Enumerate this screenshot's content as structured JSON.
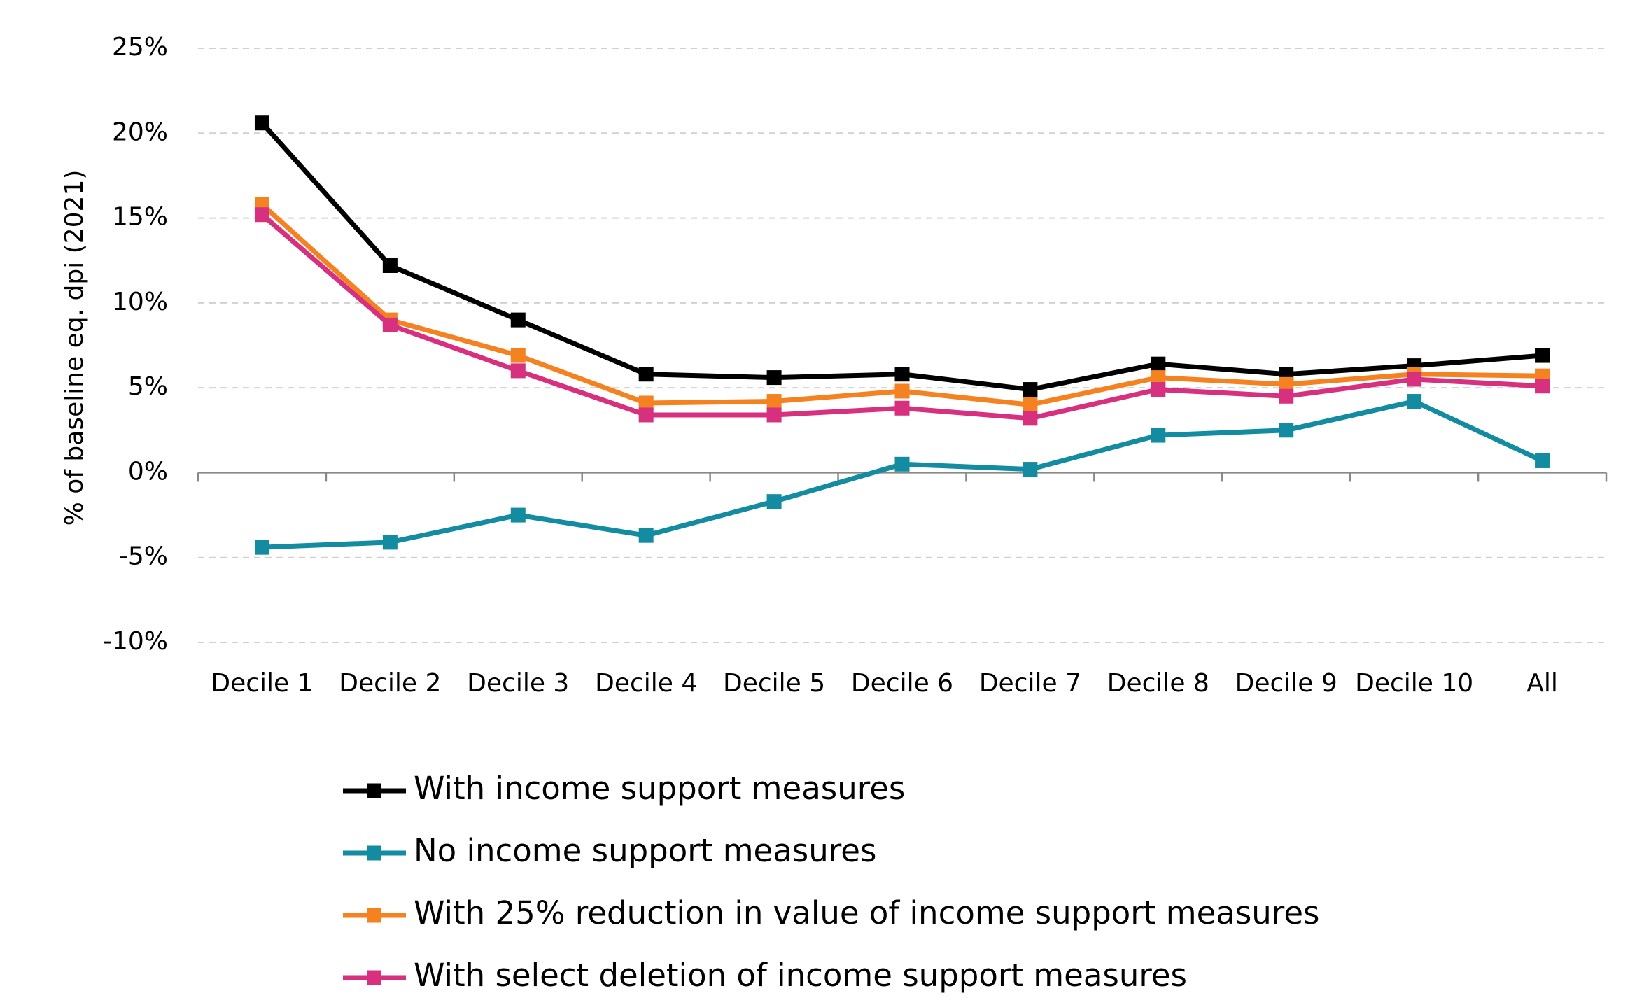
{
  "chart_data": {
    "type": "line",
    "y_axis_label": "% of baseline eq. dpi (2021)",
    "categories": [
      "Decile 1",
      "Decile 2",
      "Decile 3",
      "Decile 4",
      "Decile 5",
      "Decile 6",
      "Decile 7",
      "Decile 8",
      "Decile 9",
      "Decile 10",
      "All"
    ],
    "series": [
      {
        "name": "With income support  measures",
        "color": "#000000",
        "values": [
          20.6,
          12.2,
          9.0,
          5.8,
          5.6,
          5.8,
          4.9,
          6.4,
          5.8,
          6.3,
          6.9
        ]
      },
      {
        "name": "No income support measures",
        "color": "#138ba0",
        "values": [
          -4.4,
          -4.1,
          -2.5,
          -3.7,
          -1.7,
          0.5,
          0.2,
          2.2,
          2.5,
          4.2,
          0.7
        ]
      },
      {
        "name": "With 25% reduction in value of income support measures",
        "color": "#f58220",
        "values": [
          15.8,
          9.0,
          6.9,
          4.1,
          4.2,
          4.8,
          4.0,
          5.6,
          5.2,
          5.8,
          5.7
        ]
      },
      {
        "name": "With select deletion of income support measures",
        "color": "#d6307f",
        "values": [
          15.2,
          8.7,
          6.0,
          3.4,
          3.4,
          3.8,
          3.2,
          4.9,
          4.5,
          5.5,
          5.1
        ]
      }
    ],
    "ylim": [
      -10,
      25
    ],
    "yticks": [
      {
        "value": -10,
        "label": "-10%"
      },
      {
        "value": -5,
        "label": "-5%"
      },
      {
        "value": 0,
        "label": "0%"
      },
      {
        "value": 5,
        "label": "5%"
      },
      {
        "value": 10,
        "label": "10%"
      },
      {
        "value": 15,
        "label": "15%"
      },
      {
        "value": 20,
        "label": "20%"
      },
      {
        "value": 25,
        "label": "25%"
      }
    ],
    "grid": true,
    "legend": "bottom"
  }
}
